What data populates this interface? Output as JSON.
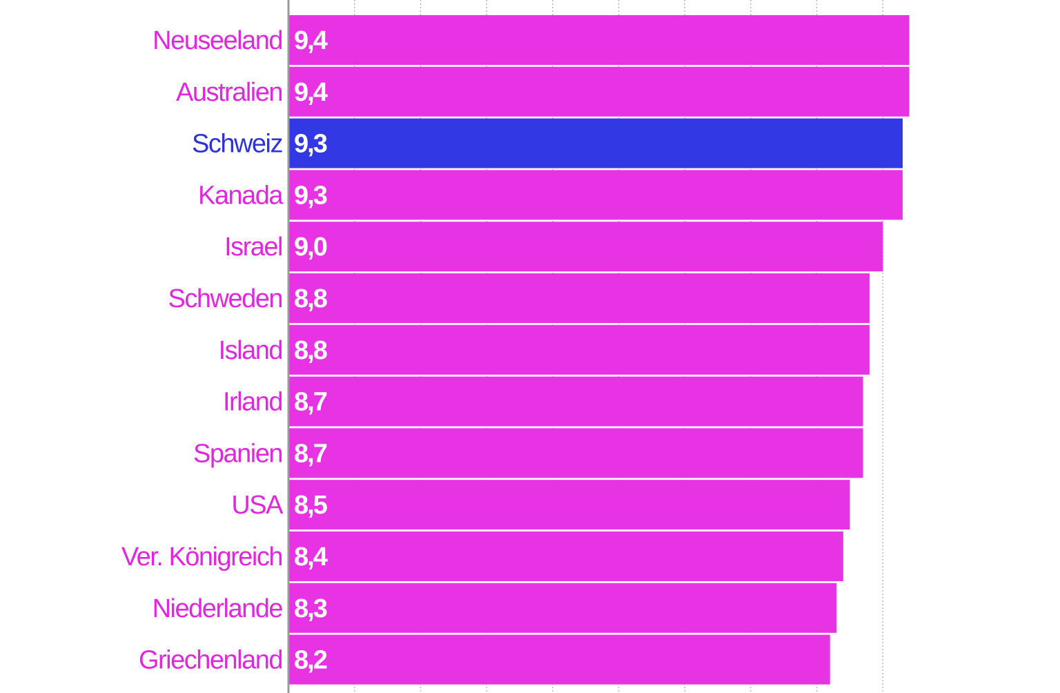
{
  "chart_data": {
    "type": "bar",
    "orientation": "horizontal",
    "categories": [
      "Neuseeland",
      "Australien",
      "Schweiz",
      "Kanada",
      "Israel",
      "Schweden",
      "Island",
      "Irland",
      "Spanien",
      "USA",
      "Ver. Königreich",
      "Niederlande",
      "Griechenland"
    ],
    "values": [
      9.4,
      9.4,
      9.3,
      9.3,
      9.0,
      8.8,
      8.8,
      8.7,
      8.7,
      8.5,
      8.4,
      8.3,
      8.2
    ],
    "value_labels": [
      "9,4",
      "9,4",
      "9,3",
      "9,3",
      "9,0",
      "8,8",
      "8,8",
      "8,7",
      "8,7",
      "8,5",
      "8,4",
      "8,3",
      "8,2"
    ],
    "highlight": "Schweiz",
    "title": "",
    "xlabel": "",
    "ylabel": "",
    "xlim": [
      0,
      10
    ],
    "grid": true,
    "legend": "none",
    "colors": {
      "default_bar": "#e833e5",
      "highlight_bar": "#3238e3",
      "default_label": "#e027dd",
      "highlight_label": "#2f33d6",
      "value_label": "#ffffff",
      "gridline": "#b8b8b8",
      "axis": "#9a9a9a"
    }
  }
}
